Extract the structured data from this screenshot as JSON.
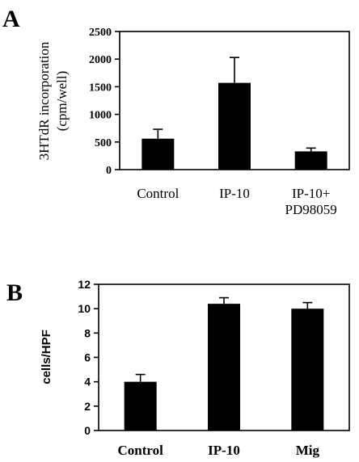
{
  "chart_data": [
    {
      "panel": "A",
      "type": "bar",
      "ylabel_lines": [
        "3HTdR incorporation",
        "(cpm/well)"
      ],
      "ylim": [
        0,
        2500
      ],
      "yticks": [
        0,
        500,
        1000,
        1500,
        2000,
        2500
      ],
      "categories": [
        [
          "Control"
        ],
        [
          "IP-10"
        ],
        [
          "IP-10+",
          "PD98059"
        ]
      ],
      "values": [
        560,
        1570,
        330
      ],
      "errors": [
        170,
        460,
        60
      ],
      "bar_color": "#000000",
      "grid": false
    },
    {
      "panel": "B",
      "type": "bar",
      "ylabel": "cells/HPF",
      "ylim": [
        0,
        12
      ],
      "yticks": [
        0,
        2,
        4,
        6,
        8,
        10,
        12
      ],
      "categories": [
        [
          "Control"
        ],
        [
          "IP-10"
        ],
        [
          "Mig"
        ]
      ],
      "values": [
        4.0,
        10.4,
        10.0
      ],
      "errors": [
        0.6,
        0.5,
        0.5
      ],
      "bar_color": "#000000",
      "grid": false
    }
  ]
}
